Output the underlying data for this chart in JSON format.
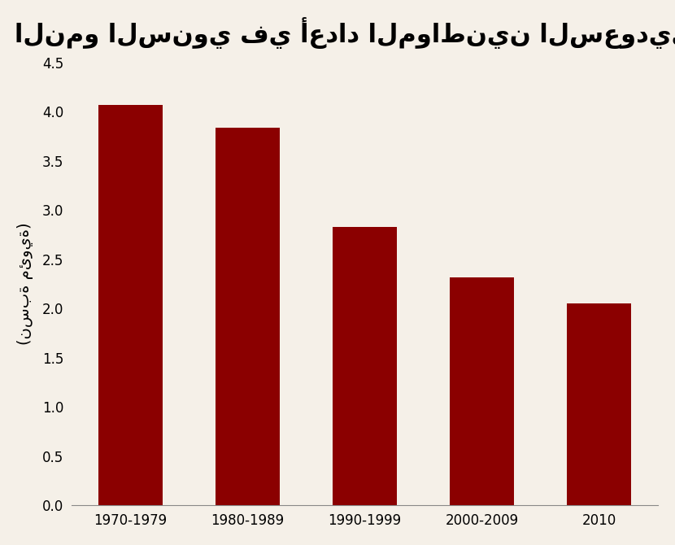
{
  "categories": [
    "1970-1979",
    "1980-1989",
    "1990-1999",
    "2000-2009",
    "2010"
  ],
  "values": [
    4.07,
    3.84,
    2.83,
    2.32,
    2.05
  ],
  "bar_color": "#8B0000",
  "title": "النمو السنوي في أعداد المواطنين السعوديين",
  "ylabel": "(نسبة مئوية)",
  "ylim": [
    0,
    4.5
  ],
  "yticks": [
    0.0,
    0.5,
    1.0,
    1.5,
    2.0,
    2.5,
    3.0,
    3.5,
    4.0,
    4.5
  ],
  "background_color": "#f5f0e8",
  "title_fontsize": 22,
  "ylabel_fontsize": 14,
  "tick_fontsize": 12,
  "bar_width": 0.55
}
